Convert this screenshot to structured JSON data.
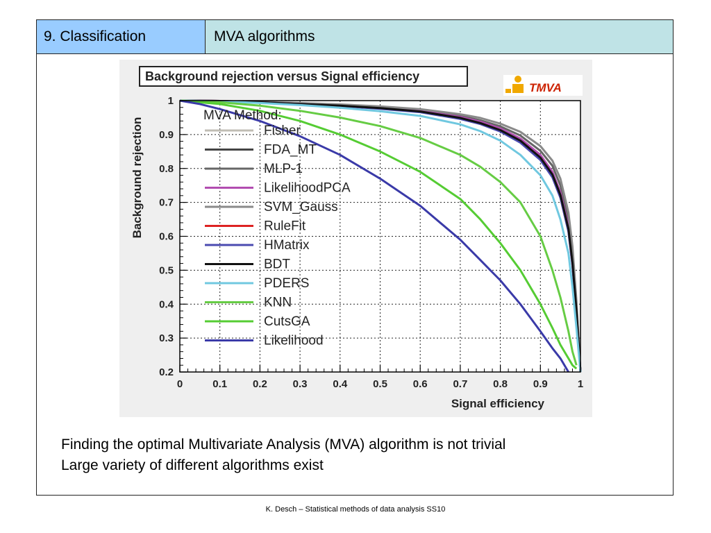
{
  "header": {
    "section": "9. Classification",
    "topic": "MVA algorithms"
  },
  "chart_data": {
    "type": "line",
    "title": "Background rejection versus Signal efficiency",
    "xlabel": "Signal efficiency",
    "ylabel": "Background rejection",
    "xlim": [
      0,
      1
    ],
    "ylim": [
      0.2,
      1
    ],
    "xticks": [
      "0",
      "0.1",
      "0.2",
      "0.3",
      "0.4",
      "0.5",
      "0.6",
      "0.7",
      "0.8",
      "0.9",
      "1"
    ],
    "yticks": [
      "0.2",
      "0.3",
      "0.4",
      "0.5",
      "0.6",
      "0.7",
      "0.8",
      "0.9",
      "1"
    ],
    "grid": true,
    "legend_title": "MVA Method:",
    "legend_position": "top-left",
    "logo_text": "TMVA",
    "series": [
      {
        "name": "Fisher",
        "color": "#c0bdb4",
        "x": [
          0,
          0.1,
          0.2,
          0.3,
          0.4,
          0.5,
          0.6,
          0.7,
          0.75,
          0.8,
          0.85,
          0.9,
          0.93,
          0.95,
          0.97,
          0.98,
          0.99,
          1.0
        ],
        "y": [
          1,
          0.999,
          0.995,
          0.99,
          0.985,
          0.978,
          0.968,
          0.948,
          0.933,
          0.912,
          0.88,
          0.83,
          0.78,
          0.72,
          0.62,
          0.52,
          0.38,
          0.2
        ]
      },
      {
        "name": "FDA_MT",
        "color": "#444444",
        "x": [
          0,
          0.1,
          0.2,
          0.3,
          0.4,
          0.5,
          0.6,
          0.7,
          0.75,
          0.8,
          0.85,
          0.9,
          0.93,
          0.95,
          0.97,
          0.98,
          0.99,
          1.0
        ],
        "y": [
          1,
          0.999,
          0.995,
          0.99,
          0.985,
          0.978,
          0.968,
          0.95,
          0.935,
          0.915,
          0.885,
          0.835,
          0.785,
          0.725,
          0.625,
          0.525,
          0.385,
          0.2
        ]
      },
      {
        "name": "MLP-1",
        "color": "#666666",
        "x": [
          0,
          0.1,
          0.2,
          0.3,
          0.4,
          0.5,
          0.6,
          0.7,
          0.75,
          0.8,
          0.85,
          0.9,
          0.93,
          0.95,
          0.97,
          0.98,
          0.99,
          1.0
        ],
        "y": [
          1,
          0.999,
          0.996,
          0.992,
          0.987,
          0.981,
          0.972,
          0.955,
          0.942,
          0.924,
          0.897,
          0.852,
          0.808,
          0.75,
          0.65,
          0.55,
          0.4,
          0.2
        ]
      },
      {
        "name": "LikelihoodPCA",
        "color": "#b24db0",
        "x": [
          0,
          0.1,
          0.2,
          0.3,
          0.4,
          0.5,
          0.6,
          0.7,
          0.75,
          0.8,
          0.85,
          0.9,
          0.93,
          0.95,
          0.97,
          0.98,
          0.99,
          1.0
        ],
        "y": [
          1,
          0.999,
          0.995,
          0.99,
          0.985,
          0.979,
          0.97,
          0.952,
          0.938,
          0.918,
          0.888,
          0.84,
          0.79,
          0.73,
          0.63,
          0.53,
          0.39,
          0.2
        ]
      },
      {
        "name": "SVM_Gauss",
        "color": "#8a8a8a",
        "x": [
          0,
          0.1,
          0.2,
          0.3,
          0.4,
          0.5,
          0.6,
          0.7,
          0.75,
          0.8,
          0.85,
          0.9,
          0.93,
          0.95,
          0.97,
          0.98,
          0.99,
          1.0
        ],
        "y": [
          1,
          0.999,
          0.996,
          0.993,
          0.989,
          0.983,
          0.975,
          0.96,
          0.949,
          0.932,
          0.908,
          0.866,
          0.823,
          0.77,
          0.67,
          0.57,
          0.41,
          0.2
        ]
      },
      {
        "name": "RuleFit",
        "color": "#dd2222",
        "x": [
          0,
          0.1,
          0.2,
          0.3,
          0.4,
          0.5,
          0.6,
          0.7,
          0.75,
          0.8,
          0.85,
          0.9,
          0.93,
          0.95,
          0.97,
          0.98,
          0.99,
          1.0
        ],
        "y": [
          1,
          0.999,
          0.995,
          0.99,
          0.984,
          0.977,
          0.967,
          0.947,
          0.932,
          0.91,
          0.877,
          0.826,
          0.775,
          0.715,
          0.615,
          0.515,
          0.375,
          0.2
        ]
      },
      {
        "name": "HMatrix",
        "color": "#4a4ab0",
        "x": [
          0,
          0.1,
          0.2,
          0.3,
          0.4,
          0.5,
          0.6,
          0.7,
          0.75,
          0.8,
          0.85,
          0.9,
          0.93,
          0.95,
          0.97,
          0.98,
          0.99,
          1.0
        ],
        "y": [
          1,
          0.999,
          0.995,
          0.99,
          0.984,
          0.976,
          0.966,
          0.946,
          0.931,
          0.909,
          0.876,
          0.825,
          0.774,
          0.714,
          0.614,
          0.514,
          0.374,
          0.2
        ]
      },
      {
        "name": "BDT",
        "color": "#111111",
        "x": [
          0,
          0.1,
          0.2,
          0.3,
          0.4,
          0.5,
          0.6,
          0.7,
          0.75,
          0.8,
          0.85,
          0.9,
          0.93,
          0.95,
          0.97,
          0.98,
          0.99,
          1.0
        ],
        "y": [
          1,
          0.999,
          0.995,
          0.99,
          0.985,
          0.978,
          0.968,
          0.949,
          0.934,
          0.913,
          0.882,
          0.832,
          0.782,
          0.722,
          0.622,
          0.522,
          0.382,
          0.2
        ]
      },
      {
        "name": "PDERS",
        "color": "#70c8e0",
        "x": [
          0,
          0.1,
          0.2,
          0.3,
          0.4,
          0.5,
          0.6,
          0.7,
          0.75,
          0.8,
          0.85,
          0.9,
          0.93,
          0.95,
          0.97,
          0.98,
          0.99,
          1.0
        ],
        "y": [
          1,
          0.998,
          0.993,
          0.987,
          0.979,
          0.969,
          0.955,
          0.93,
          0.91,
          0.882,
          0.84,
          0.78,
          0.72,
          0.65,
          0.55,
          0.45,
          0.33,
          0.2
        ]
      },
      {
        "name": "KNN",
        "color": "#66cc44",
        "x": [
          0,
          0.1,
          0.2,
          0.3,
          0.4,
          0.5,
          0.6,
          0.7,
          0.75,
          0.8,
          0.85,
          0.9,
          0.93,
          0.95,
          0.97,
          0.98,
          0.99
        ],
        "y": [
          1,
          0.995,
          0.985,
          0.97,
          0.95,
          0.925,
          0.89,
          0.84,
          0.805,
          0.76,
          0.7,
          0.6,
          0.5,
          0.42,
          0.32,
          0.26,
          0.22
        ]
      },
      {
        "name": "CutsGA",
        "color": "#55cc33",
        "x": [
          0,
          0.1,
          0.2,
          0.3,
          0.4,
          0.5,
          0.6,
          0.7,
          0.75,
          0.8,
          0.85,
          0.9,
          0.93,
          0.95,
          0.97,
          0.98,
          0.99
        ],
        "y": [
          1,
          0.99,
          0.97,
          0.94,
          0.9,
          0.85,
          0.79,
          0.71,
          0.65,
          0.58,
          0.5,
          0.4,
          0.33,
          0.28,
          0.24,
          0.22,
          0.21
        ]
      },
      {
        "name": "Likelihood",
        "color": "#3a3aa8",
        "x": [
          0,
          0.05,
          0.1,
          0.2,
          0.3,
          0.4,
          0.5,
          0.6,
          0.7,
          0.75,
          0.8,
          0.85,
          0.9,
          0.93,
          0.95,
          0.97
        ],
        "y": [
          1,
          0.99,
          0.975,
          0.94,
          0.895,
          0.84,
          0.77,
          0.69,
          0.59,
          0.53,
          0.47,
          0.4,
          0.32,
          0.27,
          0.24,
          0.2
        ]
      }
    ]
  },
  "body": {
    "line1": "Finding the optimal Multivariate Analysis (MVA) algorithm is not trivial",
    "line2": "Large variety of different algorithms exist"
  },
  "footer": {
    "text": "K. Desch – Statistical methods of data analysis SS10"
  }
}
